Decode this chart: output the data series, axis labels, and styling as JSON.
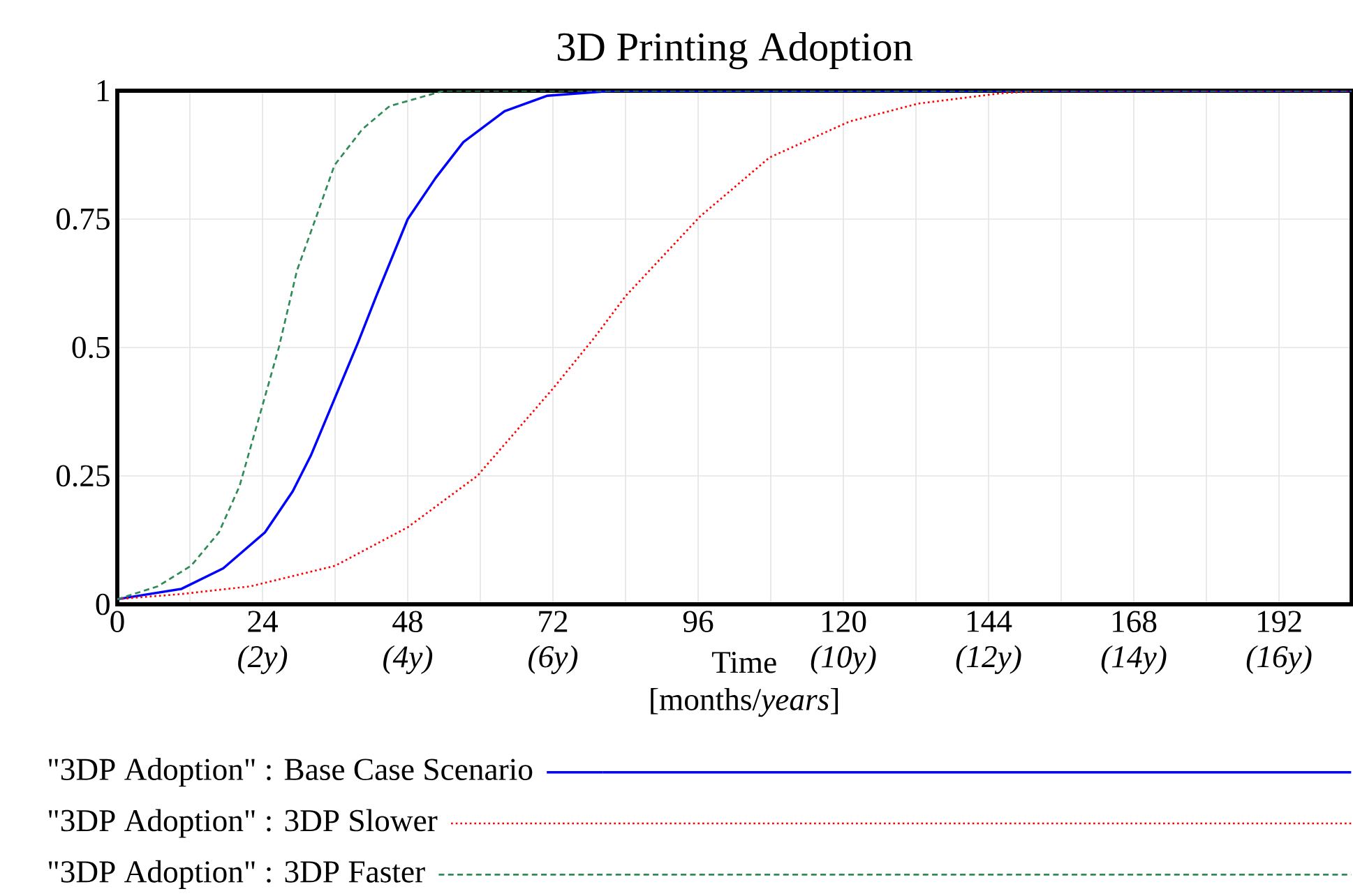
{
  "chart_data": {
    "type": "line",
    "title": "3D Printing Adoption",
    "xlabel": "Time [months/*years*]",
    "xlim": [
      0,
      204
    ],
    "ylim": [
      0,
      1
    ],
    "xticks": [
      0,
      {
        "value": 12,
        "label": null
      },
      {
        "value": 24,
        "label": "24 *(2y)*"
      },
      {
        "value": 36,
        "label": null
      },
      {
        "value": 48,
        "label": "48 *(4y)*"
      },
      {
        "value": 60,
        "label": null
      },
      {
        "value": 72,
        "label": "72 *(6y)*"
      },
      {
        "value": 84,
        "label": null
      },
      96,
      {
        "value": 108,
        "label": null
      },
      {
        "value": 120,
        "label": "120 *(10y)*"
      },
      {
        "value": 132,
        "label": null
      },
      {
        "value": 144,
        "label": "144 *(12y)*"
      },
      {
        "value": 156,
        "label": null
      },
      {
        "value": 168,
        "label": "168 *(14y)*"
      },
      {
        "value": 180,
        "label": null
      },
      {
        "value": 192,
        "label": "192 *(16y)*"
      }
    ],
    "yticks": [
      0,
      0.25,
      0.5,
      0.75,
      1
    ],
    "grid": true,
    "legend": "bottom",
    "series": [
      {
        "name": "\"3DP Adoption\" : Base Case Scenario",
        "color": "#0000ff",
        "line_style": "solid",
        "x": [
          0,
          10.6,
          17.5,
          24.4,
          29,
          32,
          35.9,
          39.8,
          42.8,
          48,
          52.6,
          57.2,
          64,
          71,
          82,
          204
        ],
        "values": [
          0.01,
          0.03,
          0.07,
          0.14,
          0.22,
          0.29,
          0.4,
          0.51,
          0.6,
          0.75,
          0.83,
          0.9,
          0.96,
          0.99,
          1,
          1
        ]
      },
      {
        "name": "\"3DP Adoption\" : 3DP Slower",
        "color": "#ff0000",
        "line_style": "dotted",
        "x": [
          0,
          10.6,
          22,
          36,
          48,
          59.5,
          72,
          78.9,
          84,
          96.3,
          107.8,
          121,
          132.4,
          146,
          153,
          204
        ],
        "values": [
          0.01,
          0.02,
          0.035,
          0.075,
          0.15,
          0.25,
          0.42,
          0.52,
          0.6,
          0.755,
          0.87,
          0.94,
          0.975,
          0.995,
          1,
          1
        ]
      },
      {
        "name": "\"3DP Adoption\" : 3DP Faster",
        "color": "#2e8b57",
        "line_style": "dashed",
        "x": [
          0,
          6.7,
          12.2,
          16.8,
          20.2,
          23.7,
          26.7,
          29.7,
          32.9,
          35.9,
          40.5,
          45,
          54,
          204
        ],
        "values": [
          0.01,
          0.035,
          0.075,
          0.14,
          0.23,
          0.375,
          0.5,
          0.65,
          0.755,
          0.855,
          0.925,
          0.97,
          1,
          1
        ]
      }
    ]
  }
}
